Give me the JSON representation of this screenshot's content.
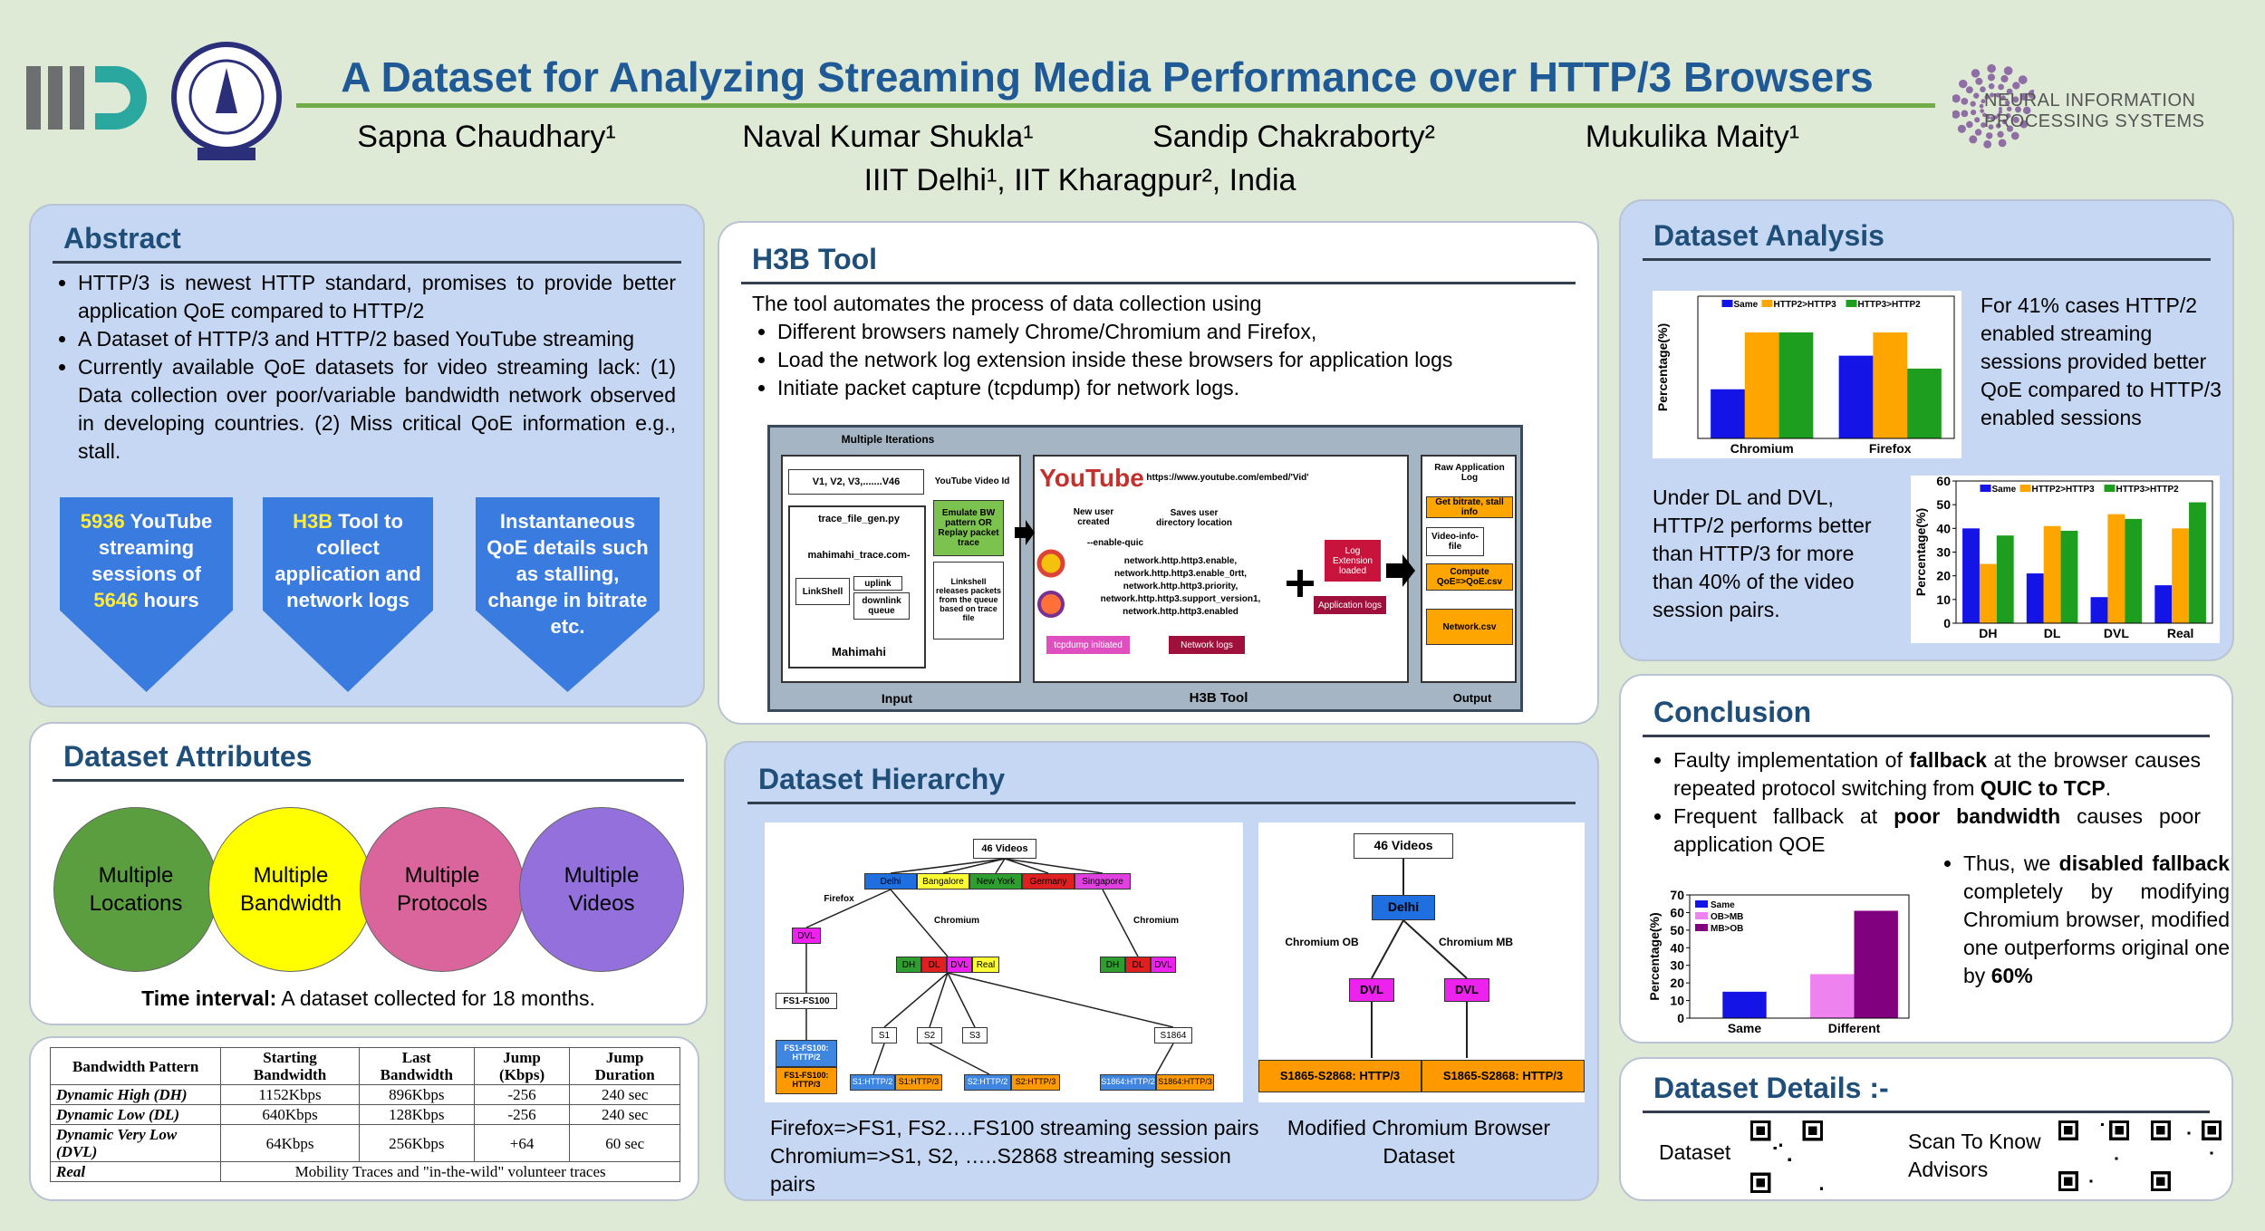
{
  "header": {
    "title": "A Dataset for Analyzing Streaming Media Performance over HTTP/3 Browsers",
    "authors": [
      "Sapna Chaudhary¹",
      "Naval Kumar Shukla¹",
      "Sandip Chakraborty²",
      "Mukulika Maity¹"
    ],
    "affiliation": "IIIT Delhi¹, IIT Kharagpur², India",
    "logo_text": "NEURAL INFORMATION PROCESSING SYSTEMS"
  },
  "abstract": {
    "title": "Abstract",
    "bullets": [
      "HTTP/3 is newest HTTP standard, promises to provide better application QoE compared to HTTP/2",
      "A Dataset of HTTP/3 and HTTP/2 based YouTube streaming",
      "Currently available QoE datasets for video streaming lack: (1) Data collection over poor/variable bandwidth network observed in developing countries. (2) Miss critical QoE information  e.g., stall."
    ],
    "boxes": [
      [
        {
          "text": "5936",
          "highlight": true
        },
        {
          "text": " YouTube streaming sessions of "
        },
        {
          "text": "5646",
          "highlight": true
        },
        {
          "text": " hours"
        }
      ],
      [
        {
          "text": "H3B",
          "highlight": true
        },
        {
          "text": " Tool to collect application and network logs"
        }
      ],
      [
        {
          "text": "Instantaneous QoE details such as stalling, change in bitrate etc."
        }
      ]
    ]
  },
  "attributes": {
    "title": "Dataset Attributes",
    "circles": [
      {
        "label": "Multiple Locations",
        "color": "#5b9e3f"
      },
      {
        "label": "Multiple Bandwidth",
        "color": "#ffff00"
      },
      {
        "label": "Multiple Protocols",
        "color": "#d9659c"
      },
      {
        "label": "Multiple Videos",
        "color": "#9370db"
      }
    ],
    "note_label": "Time interval:",
    "note": " A dataset collected for 18 months."
  },
  "table": {
    "header": [
      "Bandwidth Pattern",
      "Starting Bandwidth",
      "Last Bandwidth",
      "Jump (Kbps)",
      "Jump Duration"
    ],
    "rows": [
      [
        "Dynamic High (DH)",
        "1152Kbps",
        "896Kbps",
        "-256",
        "240 sec"
      ],
      [
        "Dynamic Low (DL)",
        "640Kbps",
        "128Kbps",
        "-256",
        "240 sec"
      ],
      [
        "Dynamic Very Low (DVL)",
        "64Kbps",
        "256Kbps",
        "+64",
        "60 sec"
      ],
      [
        "Real",
        "Mobility Traces and \"in-the-wild\" volunteer traces"
      ]
    ]
  },
  "h3b": {
    "title": "H3B Tool",
    "intro": "The tool automates the process of data collection using",
    "bullets": [
      "Different browsers namely Chrome/Chromium and Firefox,",
      "Load the network log extension inside these browsers for application logs",
      "Initiate packet capture (tcpdump) for network logs."
    ],
    "diagram": [
      "Multiple Iterations",
      "V1, V2, V3,.......V46",
      "YouTube Video Id",
      "trace_file_gen.py",
      "mahimahi_trace.com-",
      "LinkShell",
      "uplink",
      "downlink queue",
      "Mahimahi",
      "Emulate BW pattern OR Replay packet trace",
      "Linkshell releases packets from the queue based on trace file",
      "Input",
      "YouTube",
      "https://www.youtube.com/embed/'Vid'",
      "New user created",
      "Saves user directory location",
      "--enable-quic",
      "network.http.http3.enable,",
      "network.http.http3.enable_0rtt,",
      "network.http.http3.priority,",
      "network.http.http3.support_version1,",
      "network.http.http3.enabled",
      "tcpdump initiated",
      "Network logs",
      "Log Extension loaded",
      "Application logs",
      "H3B Tool",
      "Raw Application Log",
      "Get bitrate, stall info",
      "Video-info-file",
      "Compute QoE=>QoE.csv",
      "Network.csv",
      "Output"
    ]
  },
  "hierarchy": {
    "title": "Dataset Hierarchy",
    "left": [
      "46 Videos",
      "Delhi",
      "Bangalore",
      "New York",
      "Germany",
      "Singapore",
      "Firefox",
      "Chromium",
      "Chromium",
      "DVL",
      "DH",
      "DL",
      "DVL",
      "Real",
      "DH",
      "DL",
      "DVL",
      "FS1-FS100",
      "FS1-FS100: HTTP/2",
      "FS1-FS100: HTTP/3",
      "S1",
      "S2",
      "S3",
      "S1864",
      "S1:HTTP/2",
      "S1:HTTP/3",
      "S2:HTTP/2",
      "S2:HTTP/3",
      "S1864:HTTP/2",
      "S1864:HTTP/3"
    ],
    "right": [
      "46 Videos",
      "Delhi",
      "Chromium OB",
      "Chromium MB",
      "DVL",
      "DVL",
      "S1865-S2868: HTTP/3",
      "S1865-S2868: HTTP/3"
    ],
    "captions": [
      "Firefox=>FS1, FS2….FS100 streaming session pairs Chromium=>S1, S2, …..S2868 streaming session pairs",
      "Modified Chromium Browser Dataset"
    ]
  },
  "analysis": {
    "title": "Dataset Analysis",
    "text1": "For 41% cases HTTP/2 enabled streaming sessions provided better QoE compared to HTTP/3 enabled sessions",
    "text2": "Under DL and DVL, HTTP/2 performs better than HTTP/3 for more than 40% of the video session pairs."
  },
  "conclusion": {
    "title": "Conclusion",
    "bullets": [
      [
        {
          "text": "Faulty implementation of "
        },
        {
          "text": "fallback",
          "bold": true
        },
        {
          "text": " at the browser causes repeated protocol switching from "
        },
        {
          "text": "QUIC to TCP",
          "bold": true
        },
        {
          "text": "."
        }
      ],
      [
        {
          "text": "Frequent fallback at "
        },
        {
          "text": "poor bandwidth",
          "bold": true
        },
        {
          "text": " causes poor application QOE"
        }
      ]
    ],
    "thus": [
      {
        "text": "Thus, we "
      },
      {
        "text": "disabled fallback",
        "bold": true
      },
      {
        "text": " completely by modifying Chromium browser, modified one outperforms original one by "
      },
      {
        "text": "60%",
        "bold": true
      }
    ]
  },
  "details": {
    "title": "Dataset Details :-",
    "dataset": "Dataset",
    "advisors": "Scan To Know Advisors"
  },
  "chart_data": [
    {
      "type": "bar",
      "ylabel": "Percentage(%)",
      "categories": [
        "Chromium",
        "Firefox"
      ],
      "series": [
        {
          "name": "Same",
          "color": "#1414e6",
          "values": [
            19,
            32
          ]
        },
        {
          "name": "HTTP2>HTTP3",
          "color": "#ffa500",
          "values": [
            41,
            41
          ]
        },
        {
          "name": "HTTP3>HTTP2",
          "color": "#1e9e1e",
          "values": [
            41,
            27
          ]
        }
      ],
      "ylim": [
        0,
        55
      ],
      "legend": "top"
    },
    {
      "type": "bar",
      "ylabel": "Percentage(%)",
      "categories": [
        "DH",
        "DL",
        "DVL",
        "Real"
      ],
      "series": [
        {
          "name": "Same",
          "color": "#1414e6",
          "values": [
            40,
            21,
            11,
            16
          ]
        },
        {
          "name": "HTTP2>HTTP3",
          "color": "#ffa500",
          "values": [
            25,
            41,
            46,
            40
          ]
        },
        {
          "name": "HTTP3>HTTP2",
          "color": "#1e9e1e",
          "values": [
            37,
            39,
            44,
            51
          ]
        }
      ],
      "ylim": [
        0,
        60
      ],
      "yticks": [
        0,
        10,
        20,
        30,
        40,
        50,
        60
      ],
      "legend": "top"
    },
    {
      "type": "bar",
      "ylabel": "Percentage(%)",
      "categories": [
        "Same",
        "Different"
      ],
      "series": [
        {
          "name": "Same",
          "color": "#1414e6",
          "values": [
            15,
            null
          ]
        },
        {
          "name": "OB>MB",
          "color": "#ee82ee",
          "values": [
            null,
            25
          ]
        },
        {
          "name": "MB>OB",
          "color": "#800080",
          "values": [
            null,
            61
          ]
        }
      ],
      "ylim": [
        0,
        70
      ],
      "yticks": [
        0,
        10,
        20,
        30,
        40,
        50,
        60,
        70
      ],
      "legend": "upper left"
    }
  ]
}
